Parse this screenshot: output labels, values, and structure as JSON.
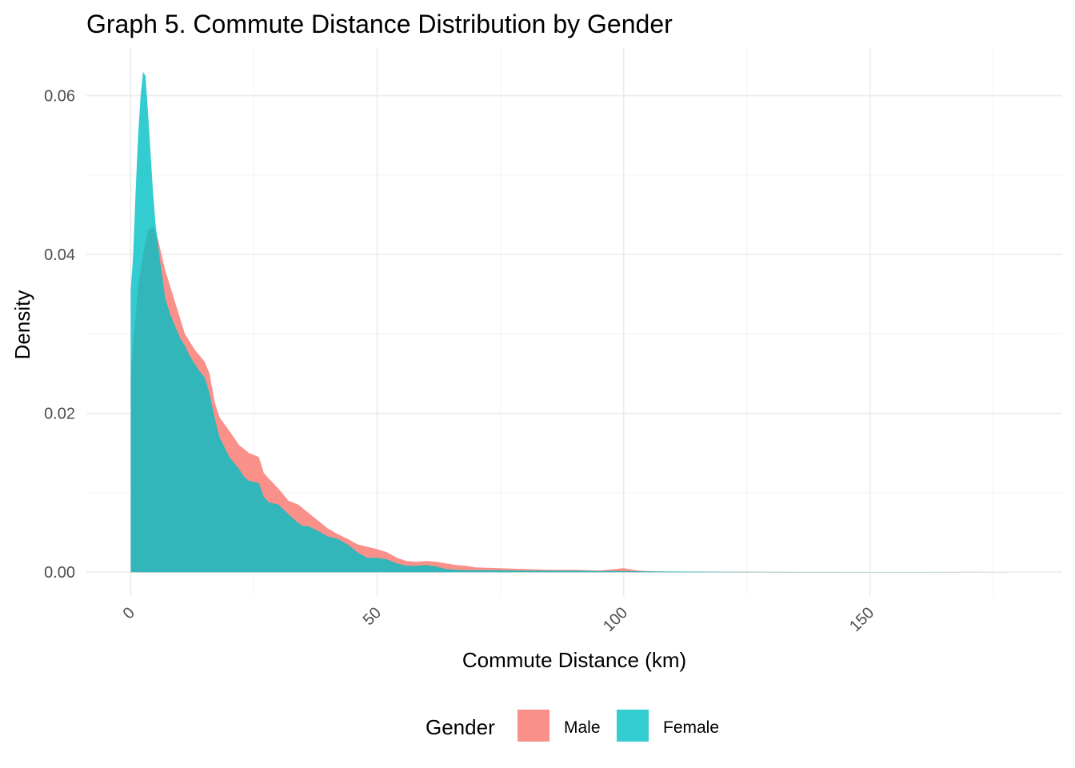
{
  "chart_data": {
    "type": "area",
    "title": "Graph 5. Commute Distance Distribution by Gender",
    "xlabel": "Commute Distance (km)",
    "ylabel": "Density",
    "xlim": [
      -9,
      189
    ],
    "ylim": [
      -0.003,
      0.066
    ],
    "x_ticks": [
      0,
      50,
      100,
      150
    ],
    "x_tick_labels": [
      "0",
      "50",
      "100",
      "150"
    ],
    "y_ticks": [
      0.0,
      0.02,
      0.04,
      0.06
    ],
    "y_tick_labels": [
      "0.00",
      "0.02",
      "0.04",
      "0.06"
    ],
    "grid": true,
    "legend": {
      "title": "Gender",
      "position": "bottom",
      "entries": [
        {
          "label": "Male",
          "color": "#F8766D"
        },
        {
          "label": "Female",
          "color": "#00BFC4"
        }
      ]
    },
    "series": [
      {
        "name": "Male",
        "color": "#F8766D",
        "opacity": 0.8,
        "x": [
          0,
          0.8,
          1.5,
          2.5,
          3.5,
          4.5,
          5.5,
          7,
          9,
          11,
          13,
          15,
          16,
          17,
          18,
          20,
          22,
          24,
          26,
          27,
          28,
          30,
          32,
          34,
          36,
          38,
          40,
          42,
          44,
          46,
          48,
          50,
          52,
          54,
          56,
          58,
          60,
          62,
          64,
          66,
          68,
          70,
          75,
          80,
          85,
          90,
          95,
          100,
          103,
          106,
          110,
          120,
          130,
          150,
          170,
          180
        ],
        "y": [
          0.025,
          0.031,
          0.036,
          0.04,
          0.043,
          0.0435,
          0.042,
          0.038,
          0.034,
          0.03,
          0.028,
          0.0265,
          0.025,
          0.0215,
          0.0195,
          0.0178,
          0.016,
          0.015,
          0.0145,
          0.0125,
          0.0118,
          0.0105,
          0.009,
          0.0085,
          0.0075,
          0.0065,
          0.0055,
          0.0048,
          0.0042,
          0.0035,
          0.0032,
          0.0029,
          0.0025,
          0.0018,
          0.0014,
          0.0013,
          0.0014,
          0.0013,
          0.0011,
          0.0009,
          0.0008,
          0.0006,
          0.0005,
          0.0004,
          0.0003,
          0.0003,
          0.0002,
          0.0005,
          0.0002,
          0.0001,
          5e-05,
          3e-05,
          2e-05,
          1e-05,
          1e-05,
          0.0
        ]
      },
      {
        "name": "Female",
        "color": "#00BFC4",
        "opacity": 0.8,
        "x": [
          0,
          0.5,
          1,
          1.5,
          2,
          2.5,
          3,
          3.5,
          4,
          4.5,
          5,
          6,
          7,
          8,
          9,
          10,
          11,
          12,
          13,
          14,
          15,
          16,
          17,
          18,
          20,
          22,
          23,
          24,
          26,
          27,
          28,
          30,
          32,
          34,
          35,
          36,
          38,
          40,
          42,
          44,
          46,
          48,
          50,
          52,
          54,
          56,
          58,
          60,
          62,
          64,
          66,
          68,
          70,
          75,
          80,
          85,
          90,
          95,
          100,
          105,
          110,
          120,
          130,
          150,
          170,
          180
        ],
        "y": [
          0.0355,
          0.04,
          0.048,
          0.055,
          0.06,
          0.063,
          0.0625,
          0.058,
          0.053,
          0.048,
          0.044,
          0.039,
          0.0345,
          0.0325,
          0.031,
          0.0295,
          0.0285,
          0.0272,
          0.0262,
          0.0253,
          0.0245,
          0.0225,
          0.0195,
          0.017,
          0.0145,
          0.013,
          0.012,
          0.0115,
          0.0112,
          0.0095,
          0.0088,
          0.0085,
          0.0073,
          0.0062,
          0.0058,
          0.0058,
          0.0052,
          0.0045,
          0.0042,
          0.0035,
          0.0025,
          0.0018,
          0.0018,
          0.0016,
          0.0011,
          0.0008,
          0.0008,
          0.0009,
          0.0007,
          0.0004,
          0.0003,
          0.00025,
          0.00025,
          0.00025,
          0.0002,
          0.0002,
          0.0002,
          0.00015,
          0.00015,
          0.0001,
          8e-05,
          5e-05,
          3e-05,
          2e-05,
          1e-05,
          0.0
        ]
      }
    ]
  }
}
